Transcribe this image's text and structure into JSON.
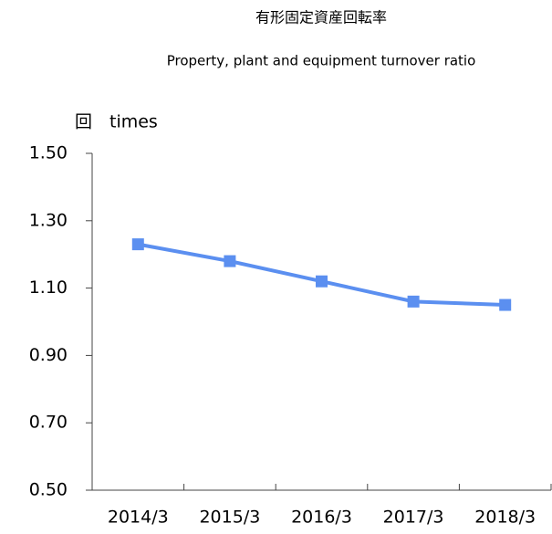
{
  "chart_data": {
    "type": "line",
    "title": "有形固定資産回転率",
    "subtitle": "Property, plant and equipment turnover ratio",
    "y_label": "回　times",
    "categories": [
      "2014/3",
      "2015/3",
      "2016/3",
      "2017/3",
      "2018/3"
    ],
    "series": [
      {
        "name": "有形固定資産回転率",
        "color": "#5b8ff0",
        "values": [
          1.23,
          1.18,
          1.12,
          1.06,
          1.05
        ]
      }
    ],
    "ylim": [
      0.5,
      1.5
    ],
    "yticks": [
      {
        "value": 1.5,
        "label": "1.50"
      },
      {
        "value": 1.3,
        "label": "1.30"
      },
      {
        "value": 1.1,
        "label": "1.10"
      },
      {
        "value": 0.9,
        "label": "0.90"
      },
      {
        "value": 0.7,
        "label": "0.70"
      },
      {
        "value": 0.5,
        "label": "0.50"
      }
    ],
    "grid": false
  }
}
